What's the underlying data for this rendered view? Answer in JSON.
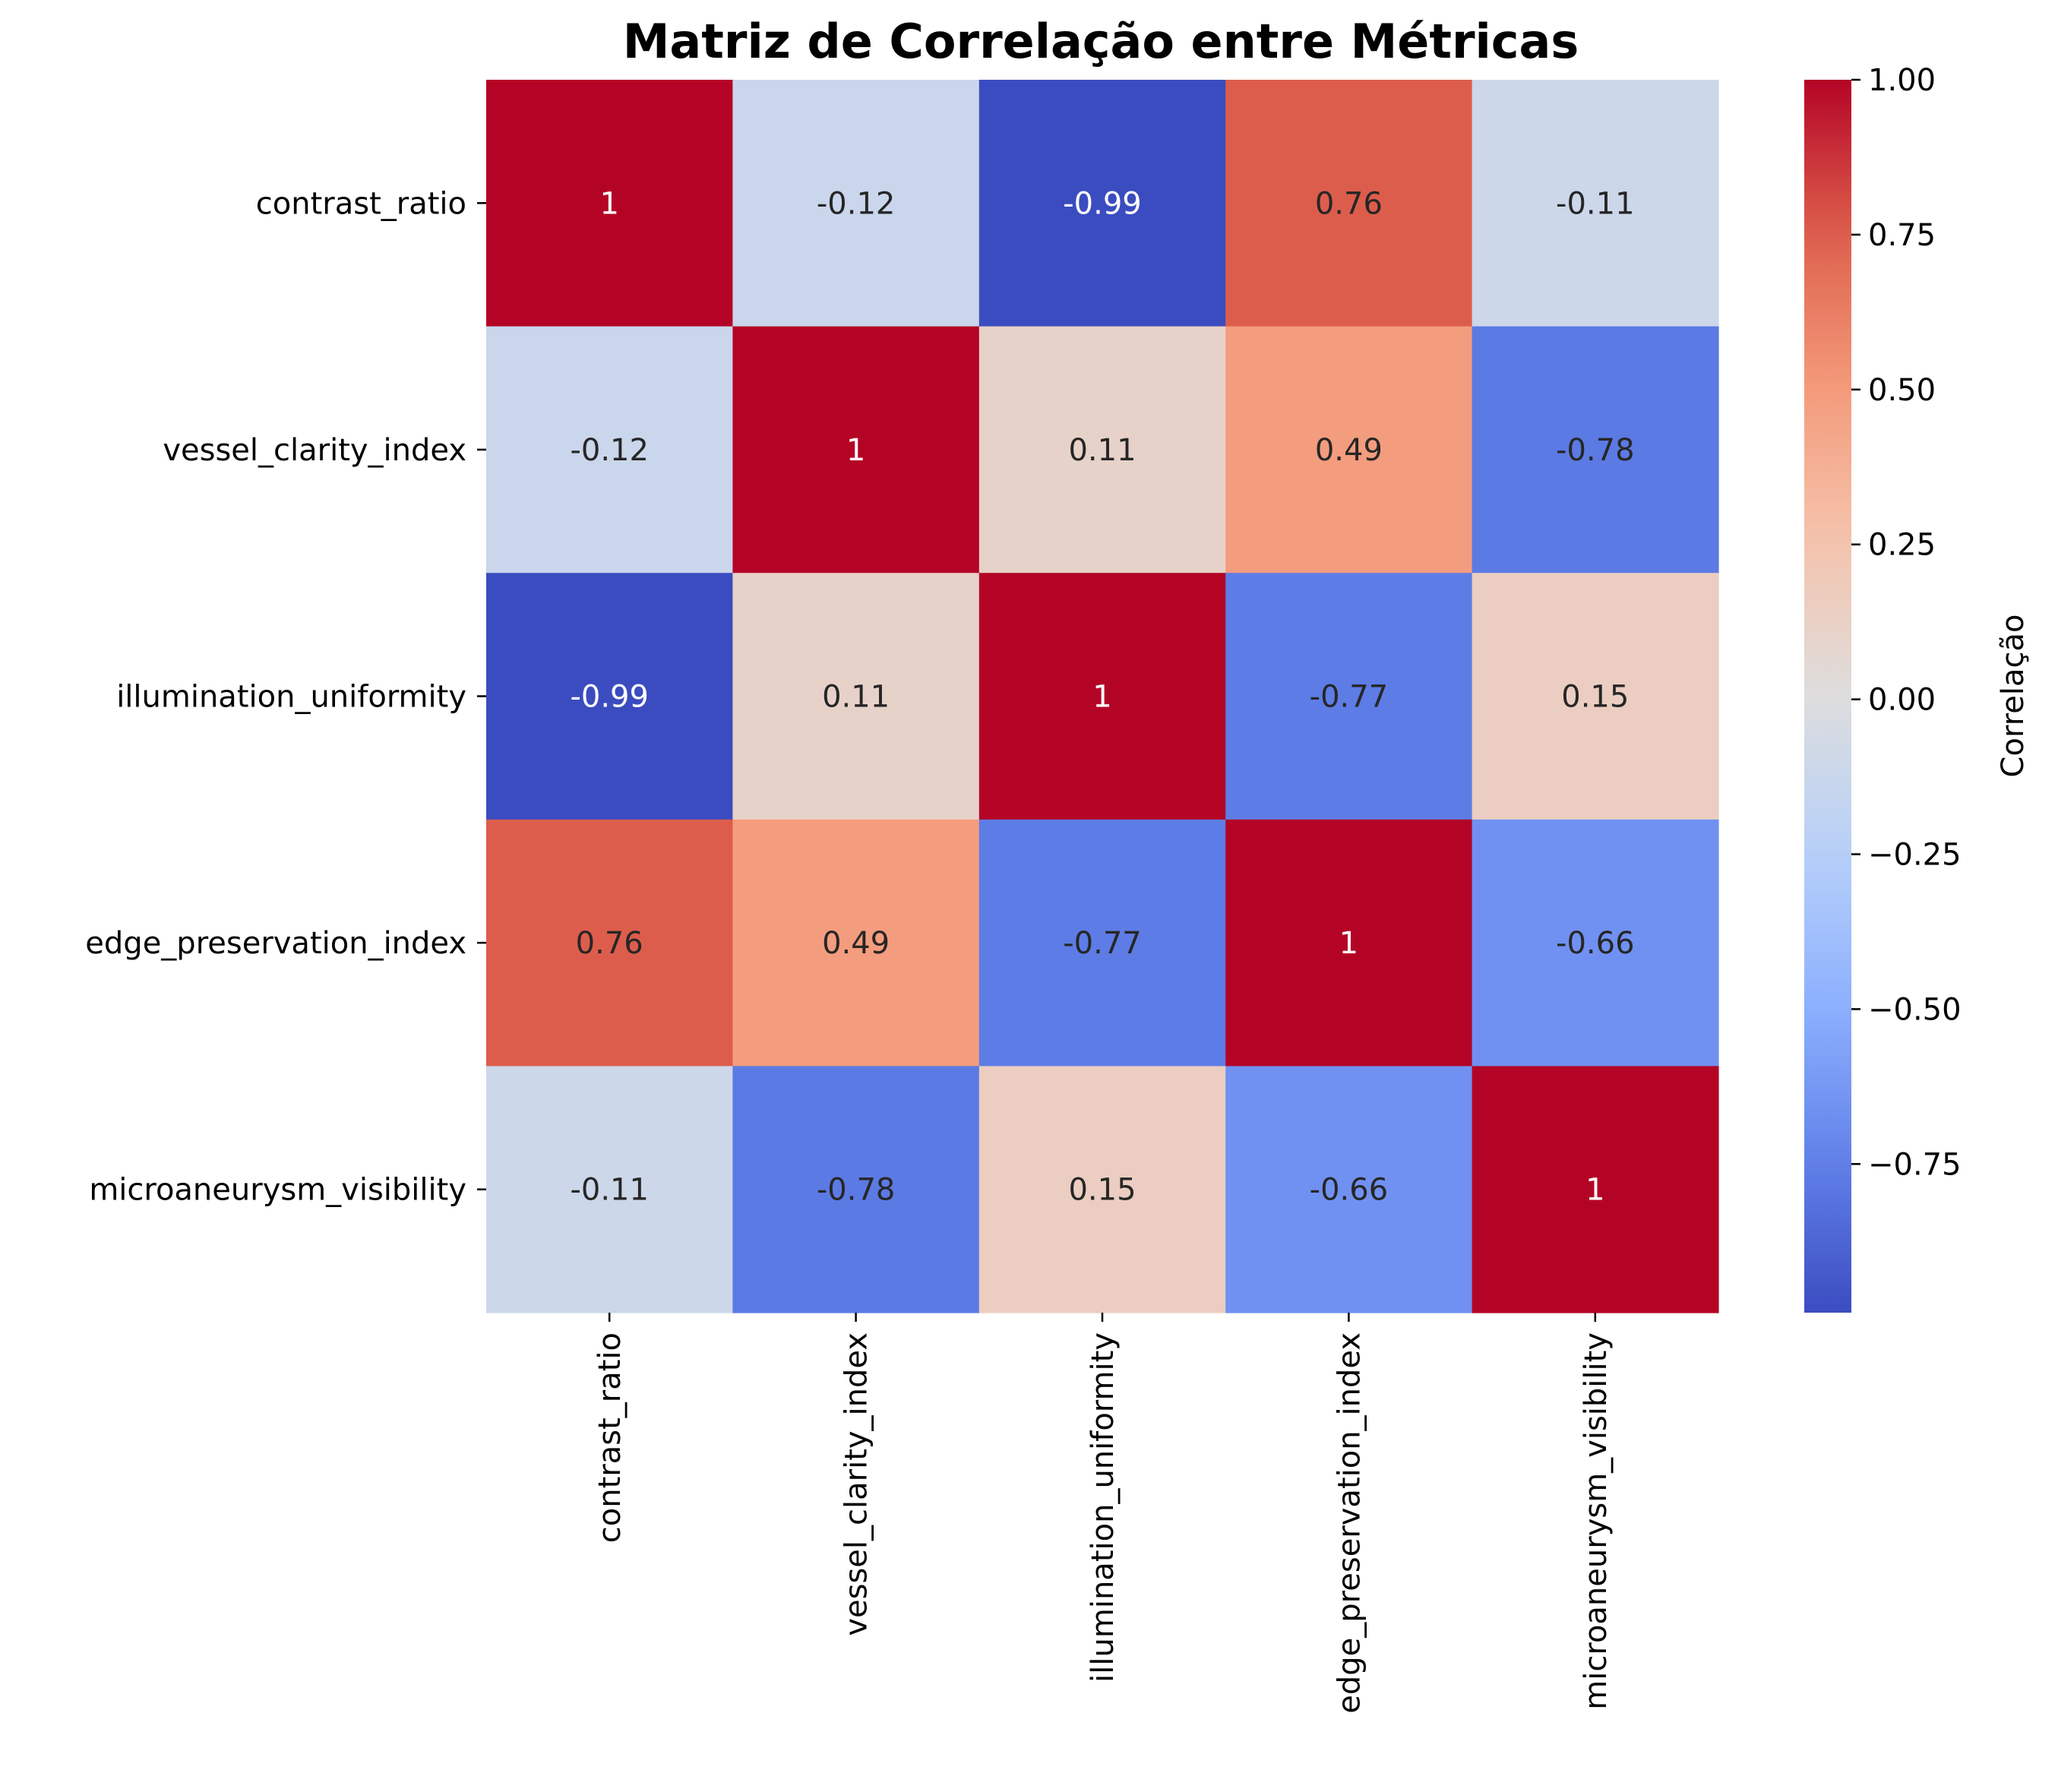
{
  "chart_data": {
    "type": "heatmap",
    "title": "Matriz de Correlação entre Métricas",
    "xlabel": "",
    "ylabel": "",
    "rows": [
      "contrast_ratio",
      "vessel_clarity_index",
      "illumination_uniformity",
      "edge_preservation_index",
      "microaneurysm_visibility"
    ],
    "columns": [
      "contrast_ratio",
      "vessel_clarity_index",
      "illumination_uniformity",
      "edge_preservation_index",
      "microaneurysm_visibility"
    ],
    "values": [
      [
        1,
        -0.12,
        -0.99,
        0.76,
        -0.11
      ],
      [
        -0.12,
        1,
        0.11,
        0.49,
        -0.78
      ],
      [
        -0.99,
        0.11,
        1,
        -0.77,
        0.15
      ],
      [
        0.76,
        0.49,
        -0.77,
        1,
        -0.66
      ],
      [
        -0.11,
        -0.78,
        0.15,
        -0.66,
        1
      ]
    ],
    "cell_labels": [
      [
        "1",
        "-0.12",
        "-0.99",
        "0.76",
        "-0.11"
      ],
      [
        "-0.12",
        "1",
        "0.11",
        "0.49",
        "-0.78"
      ],
      [
        "-0.99",
        "0.11",
        "1",
        "-0.77",
        "0.15"
      ],
      [
        "0.76",
        "0.49",
        "-0.77",
        "1",
        "-0.66"
      ],
      [
        "-0.11",
        "-0.78",
        "0.15",
        "-0.66",
        "1"
      ]
    ],
    "colormap": "coolwarm",
    "colorbar": {
      "label": "Correlação",
      "range": [
        -0.99,
        1.0
      ],
      "ticks": [
        1.0,
        0.75,
        0.5,
        0.25,
        0.0,
        -0.25,
        -0.5,
        -0.75
      ],
      "tick_labels": [
        "1.00",
        "0.75",
        "0.50",
        "0.25",
        "0.00",
        "−0.25",
        "−0.50",
        "−0.75"
      ]
    },
    "annotation_colors": {
      "light": "#ffffff",
      "dark": "#262626"
    },
    "grid": false
  }
}
